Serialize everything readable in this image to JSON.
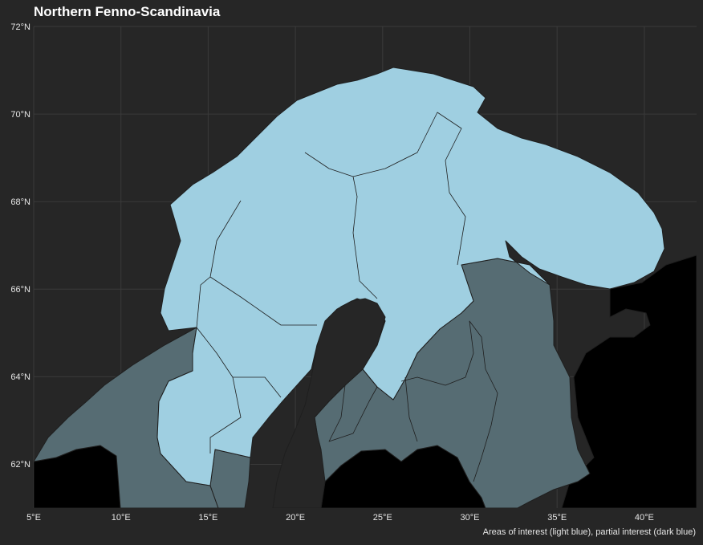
{
  "title": "Northern Fenno-Scandinavia",
  "caption": "Areas of interest (light blue), partial interest (dark blue)",
  "axes": {
    "lat_labels": [
      "62°N",
      "64°N",
      "66°N",
      "68°N",
      "70°N",
      "72°N"
    ],
    "lon_labels": [
      "5°E",
      "10°E",
      "15°E",
      "20°E",
      "25°E",
      "30°E",
      "35°E",
      "40°E"
    ],
    "lat_range": [
      61,
      72
    ],
    "lon_range": [
      5,
      43
    ],
    "grid": true
  },
  "legend": {
    "interest_label": "light blue",
    "partial_label": "dark blue"
  },
  "colors": {
    "background": "#262626",
    "panel": "#262626",
    "grid": "#3a3a3a",
    "interest": "#9fcfe1",
    "partial": "#566c73",
    "other_land": "#000000",
    "borders": "#1f1f1f"
  }
}
